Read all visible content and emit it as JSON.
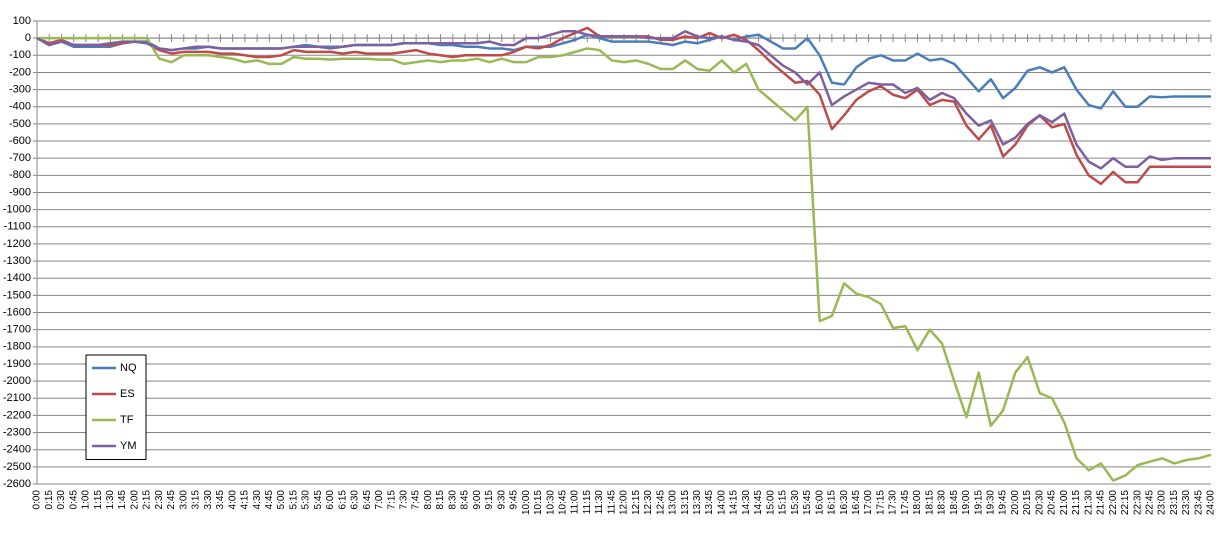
{
  "chart_data": {
    "type": "line",
    "categories": [
      "0:00",
      "0:15",
      "0:30",
      "0:45",
      "1:00",
      "1:15",
      "1:30",
      "1:45",
      "2:00",
      "2:15",
      "2:30",
      "2:45",
      "3:00",
      "3:15",
      "3:30",
      "3:45",
      "4:00",
      "4:15",
      "4:30",
      "4:45",
      "5:00",
      "5:15",
      "5:30",
      "5:45",
      "6:00",
      "6:15",
      "6:30",
      "6:45",
      "7:00",
      "7:15",
      "7:30",
      "7:45",
      "8:00",
      "8:15",
      "8:30",
      "8:45",
      "9:00",
      "9:15",
      "9:30",
      "9:45",
      "10:00",
      "10:15",
      "10:30",
      "10:45",
      "11:00",
      "11:15",
      "11:30",
      "11:45",
      "12:00",
      "12:15",
      "12:30",
      "12:45",
      "13:00",
      "13:15",
      "13:30",
      "13:45",
      "14:00",
      "14:15",
      "14:30",
      "14:45",
      "15:00",
      "15:15",
      "15:30",
      "15:45",
      "16:00",
      "16:15",
      "16:30",
      "16:45",
      "17:00",
      "17:15",
      "17:30",
      "17:45",
      "18:00",
      "18:15",
      "18:30",
      "18:45",
      "19:00",
      "19:15",
      "19:30",
      "19:45",
      "20:00",
      "20:15",
      "20:30",
      "20:45",
      "21:00",
      "21:15",
      "21:30",
      "21:45",
      "22:00",
      "22:15",
      "22:30",
      "22:45",
      "23:00",
      "23:15",
      "23:30",
      "23:45",
      "24:00"
    ],
    "series": [
      {
        "name": "NQ",
        "color": "#4a7ebb",
        "values": [
          0,
          -40,
          -20,
          -50,
          -50,
          -50,
          -50,
          -30,
          -20,
          -20,
          -60,
          -70,
          -60,
          -60,
          -50,
          -60,
          -60,
          -60,
          -60,
          -60,
          -60,
          -50,
          -40,
          -50,
          -50,
          -50,
          -40,
          -40,
          -40,
          -40,
          -30,
          -30,
          -30,
          -40,
          -40,
          -50,
          -50,
          -60,
          -60,
          -70,
          -50,
          -50,
          -50,
          -30,
          -10,
          20,
          0,
          -20,
          -20,
          -20,
          -20,
          -30,
          -40,
          -20,
          -30,
          -10,
          10,
          -10,
          10,
          20,
          -20,
          -60,
          -60,
          0,
          -100,
          -260,
          -270,
          -170,
          -120,
          -100,
          -130,
          -130,
          -90,
          -130,
          -120,
          -150,
          -230,
          -310,
          -240,
          -350,
          -290,
          -190,
          -170,
          -200,
          -170,
          -300,
          -390,
          -410,
          -310,
          -400,
          -400,
          -340,
          -345,
          -340,
          -340,
          -340,
          -340
        ]
      },
      {
        "name": "ES",
        "color": "#be4b48",
        "values": [
          0,
          -30,
          -10,
          -40,
          -40,
          -40,
          -40,
          -30,
          -20,
          -30,
          -70,
          -90,
          -80,
          -80,
          -80,
          -90,
          -90,
          -100,
          -110,
          -110,
          -100,
          -70,
          -80,
          -80,
          -80,
          -90,
          -80,
          -90,
          -90,
          -90,
          -80,
          -70,
          -90,
          -100,
          -110,
          -100,
          -100,
          -100,
          -100,
          -80,
          -50,
          -60,
          -40,
          0,
          30,
          60,
          10,
          10,
          10,
          10,
          10,
          -10,
          -10,
          10,
          0,
          30,
          0,
          20,
          -10,
          -70,
          -140,
          -200,
          -260,
          -250,
          -330,
          -530,
          -450,
          -360,
          -310,
          -280,
          -330,
          -350,
          -300,
          -390,
          -360,
          -370,
          -510,
          -590,
          -510,
          -690,
          -620,
          -510,
          -450,
          -520,
          -500,
          -680,
          -800,
          -850,
          -780,
          -840,
          -840,
          -750,
          -750,
          -750,
          -750,
          -750,
          -750
        ]
      },
      {
        "name": "TF",
        "color": "#98b954",
        "values": [
          0,
          0,
          0,
          0,
          0,
          0,
          0,
          0,
          0,
          0,
          -120,
          -140,
          -100,
          -100,
          -100,
          -110,
          -120,
          -140,
          -130,
          -150,
          -150,
          -110,
          -120,
          -120,
          -125,
          -120,
          -120,
          -120,
          -125,
          -125,
          -150,
          -140,
          -130,
          -140,
          -130,
          -130,
          -120,
          -140,
          -120,
          -140,
          -140,
          -110,
          -110,
          -100,
          -80,
          -60,
          -70,
          -130,
          -140,
          -130,
          -150,
          -180,
          -180,
          -130,
          -180,
          -190,
          -130,
          -200,
          -150,
          -300,
          -360,
          -420,
          -480,
          -400,
          -1650,
          -1620,
          -1430,
          -1490,
          -1510,
          -1550,
          -1690,
          -1680,
          -1820,
          -1700,
          -1780,
          -2000,
          -2210,
          -1950,
          -2260,
          -2170,
          -1950,
          -1860,
          -2070,
          -2100,
          -2240,
          -2450,
          -2520,
          -2480,
          -2580,
          -2550,
          -2490,
          -2470,
          -2450,
          -2480,
          -2460,
          -2450,
          -2430
        ]
      },
      {
        "name": "YM",
        "color": "#7d60a0",
        "values": [
          0,
          -40,
          -20,
          -40,
          -40,
          -40,
          -30,
          -20,
          -20,
          -30,
          -60,
          -70,
          -60,
          -50,
          -50,
          -60,
          -60,
          -60,
          -60,
          -60,
          -60,
          -50,
          -50,
          -50,
          -60,
          -50,
          -40,
          -40,
          -40,
          -40,
          -30,
          -30,
          -30,
          -30,
          -30,
          -30,
          -30,
          -20,
          -40,
          -40,
          0,
          0,
          20,
          40,
          40,
          20,
          10,
          10,
          10,
          10,
          0,
          0,
          0,
          40,
          10,
          0,
          10,
          -10,
          -20,
          -40,
          -100,
          -160,
          -200,
          -270,
          -200,
          -390,
          -340,
          -300,
          -260,
          -270,
          -270,
          -320,
          -290,
          -360,
          -320,
          -350,
          -440,
          -510,
          -480,
          -620,
          -580,
          -500,
          -450,
          -490,
          -440,
          -620,
          -720,
          -760,
          -700,
          -750,
          -750,
          -690,
          -710,
          -700,
          -700,
          -700,
          -700
        ]
      }
    ],
    "ylim": [
      -2600,
      100
    ],
    "yticks": [
      100,
      0,
      -100,
      -200,
      -300,
      -400,
      -500,
      -600,
      -700,
      -800,
      -900,
      -1000,
      -1100,
      -1200,
      -1300,
      -1400,
      -1500,
      -1600,
      -1700,
      -1800,
      -1900,
      -2000,
      -2100,
      -2200,
      -2300,
      -2400,
      -2500,
      -2600
    ],
    "grid": true,
    "legend": "lower-left"
  }
}
